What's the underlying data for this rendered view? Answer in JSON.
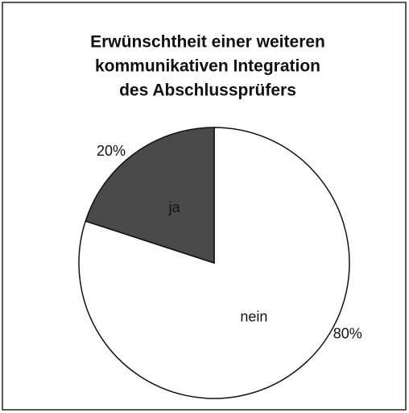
{
  "chart_data": {
    "type": "pie",
    "title": [
      "Erwünschtheit einer weiteren",
      "kommunikativen Integration",
      "des Abschlussprüfers"
    ],
    "categories": [
      "nein",
      "ja"
    ],
    "values": [
      80,
      20
    ],
    "value_labels": [
      "80%",
      "20%"
    ],
    "colors": [
      "#ffffff",
      "#4a4a4a"
    ]
  }
}
